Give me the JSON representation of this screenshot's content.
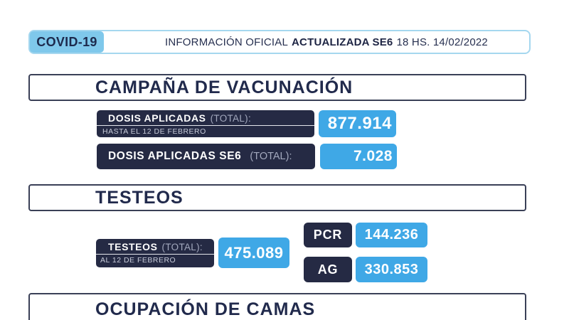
{
  "colors": {
    "accent_blue": "#3FA8E6",
    "badge_blue": "#7FC8EB",
    "navy": "#252A44",
    "title_navy": "#212A4C",
    "header_border": "#A5D7EF",
    "section_border": "#3A4057"
  },
  "header": {
    "badge": "COVID-19",
    "info_prefix": "INFORMACIÓN OFICIAL",
    "info_bold": "ACTUALIZADA SE6",
    "info_suffix": "18 HS. 14/02/2022"
  },
  "vaccination": {
    "title": "CAMPAÑA DE VACUNACIÓN",
    "total": {
      "label": "DOSIS APLICADAS",
      "note": "(TOTAL):",
      "sublabel": "HASTA EL 12 DE FEBRERO",
      "value": "877.914"
    },
    "week": {
      "label": "DOSIS APLICADAS SE6",
      "note": "(TOTAL):",
      "value": "7.028"
    }
  },
  "testing": {
    "title": "TESTEOS",
    "total": {
      "label": "TESTEOS",
      "note": "(TOTAL):",
      "sublabel": "AL 12 DE FEBRERO",
      "value": "475.089"
    },
    "breakdown": [
      {
        "label": "PCR",
        "value": "144.236"
      },
      {
        "label": "AG",
        "value": "330.853"
      }
    ]
  },
  "beds": {
    "title": "OCUPACIÓN DE CAMAS"
  }
}
